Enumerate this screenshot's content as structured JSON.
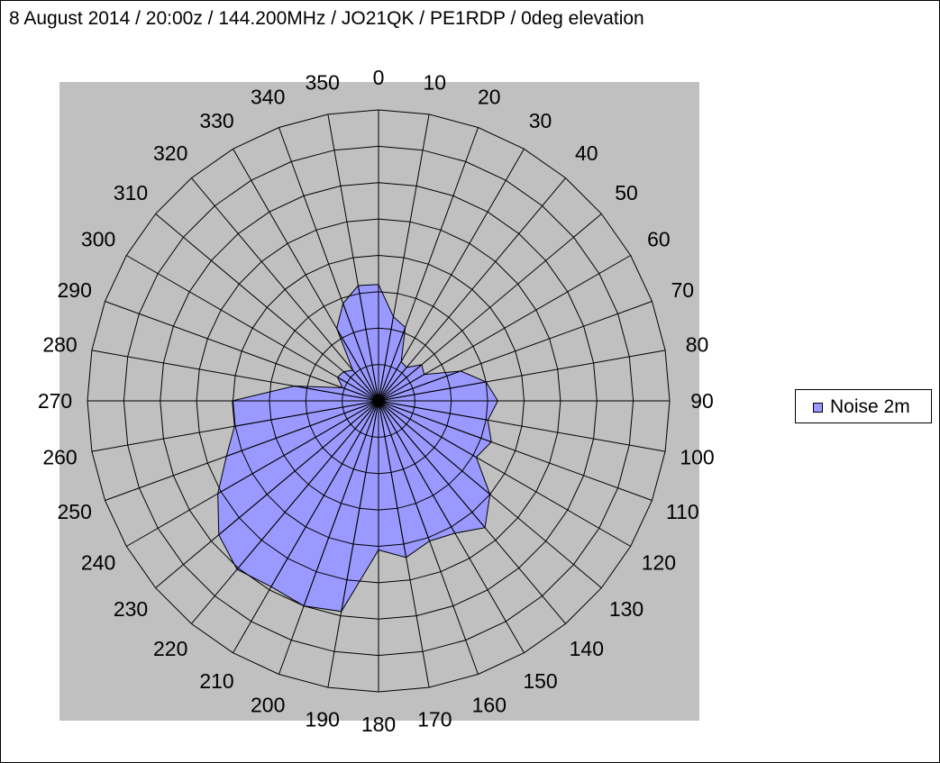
{
  "chart_data": {
    "type": "radar",
    "title": "8 August 2014 / 20:00z / 144.200MHz  / JO21QK / PE1RDP / 0deg elevation",
    "angles": [
      0,
      10,
      20,
      30,
      40,
      50,
      60,
      70,
      80,
      90,
      100,
      110,
      120,
      130,
      140,
      150,
      160,
      170,
      180,
      190,
      200,
      210,
      220,
      230,
      240,
      250,
      260,
      270,
      280,
      290,
      300,
      310,
      320,
      330,
      340,
      350
    ],
    "tick_labels": [
      "0",
      "10",
      "20",
      "30",
      "40",
      "50",
      "60",
      "70",
      "80",
      "90",
      "100",
      "110",
      "120",
      "130",
      "140",
      "150",
      "160",
      "170",
      "180",
      "190",
      "200",
      "210",
      "220",
      "230",
      "240",
      "250",
      "260",
      "270",
      "280",
      "290",
      "300",
      "310",
      "320",
      "330",
      "340",
      "350"
    ],
    "rlim": [
      0,
      8
    ],
    "grid": true,
    "legend_position": "right",
    "series": [
      {
        "name": "Noise 2m",
        "color": "#9999ff",
        "values": [
          3.2,
          2.35,
          2.15,
          1.25,
          1.2,
          1.55,
          1.45,
          2.4,
          3.0,
          3.28,
          3.05,
          3.3,
          3.1,
          4.0,
          4.55,
          4.2,
          4.1,
          4.37,
          4.1,
          5.88,
          6.0,
          5.9,
          6.05,
          5.73,
          5.1,
          4.45,
          4.02,
          4.02,
          2.35,
          1.05,
          1.3,
          1.25,
          1.1,
          2.3,
          2.85,
          3.22
        ]
      }
    ]
  },
  "legend": {
    "label": "Noise 2m"
  }
}
